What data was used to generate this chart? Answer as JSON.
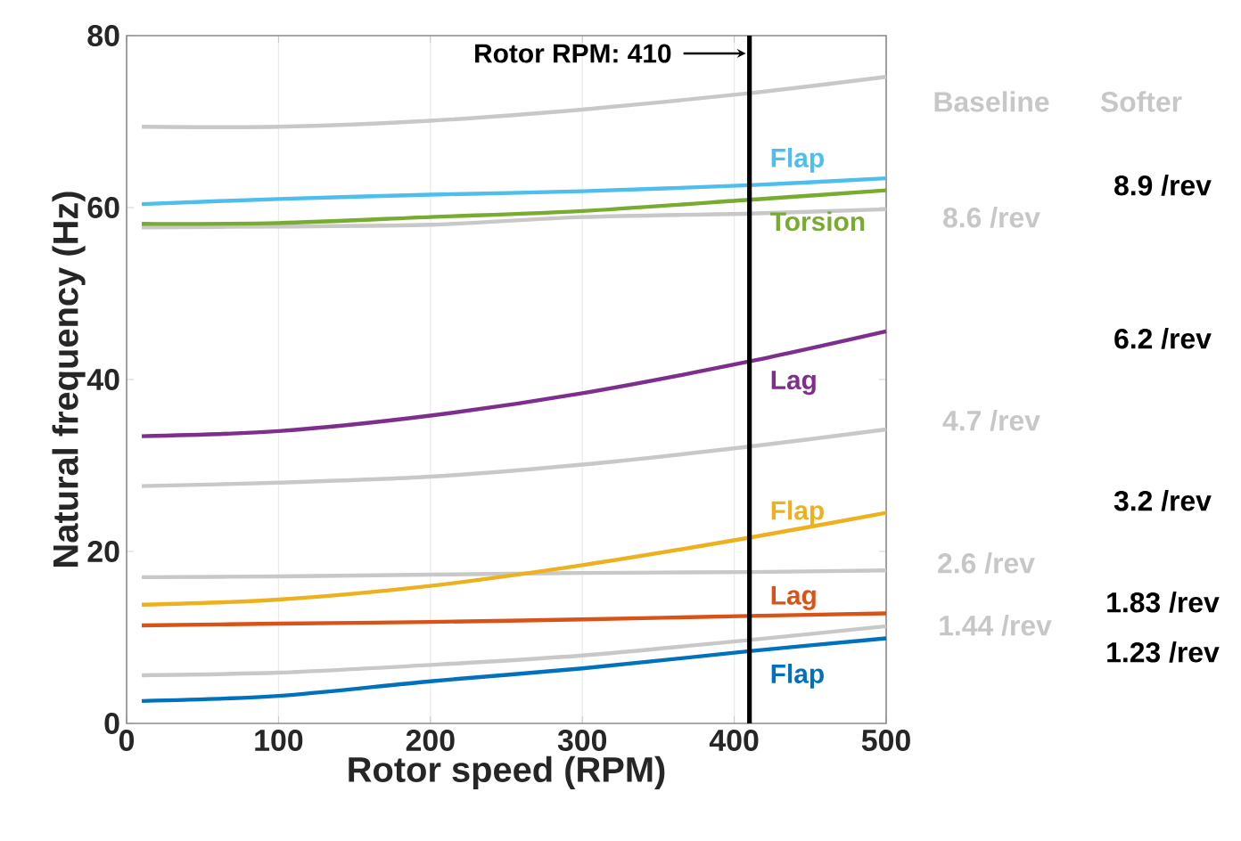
{
  "chart_data": {
    "type": "line",
    "xlabel": "Rotor speed (RPM)",
    "ylabel": "Natural  frequency (Hz)",
    "xlim": [
      0,
      500
    ],
    "ylim": [
      0,
      80
    ],
    "xticks": [
      0,
      100,
      200,
      300,
      400,
      500
    ],
    "yticks": [
      0,
      20,
      40,
      60,
      80
    ],
    "grid": "x",
    "marker": "none",
    "line_style": "solid",
    "x": [
      10,
      100,
      200,
      300,
      410,
      500
    ],
    "series": [
      {
        "color": "#c8c8c8",
        "values": [
          69.4,
          69.4,
          70.1,
          71.4,
          73.3,
          75.2
        ]
      },
      {
        "color": "#c8c8c8",
        "values": [
          57.7,
          57.8,
          58.0,
          58.9,
          59.3,
          59.8
        ]
      },
      {
        "color": "#c8c8c8",
        "values": [
          27.6,
          28.0,
          28.7,
          30.1,
          32.2,
          34.2
        ]
      },
      {
        "color": "#c8c8c8",
        "values": [
          17.0,
          17.1,
          17.3,
          17.5,
          17.6,
          17.8
        ]
      },
      {
        "color": "#c8c8c8",
        "values": [
          5.6,
          5.9,
          6.8,
          7.9,
          9.7,
          11.3
        ]
      },
      {
        "name": "Flap",
        "color": "#4dbeee",
        "values": [
          60.4,
          61.0,
          61.5,
          61.9,
          62.6,
          63.4
        ]
      },
      {
        "name": "Torsion",
        "color": "#77ac30",
        "values": [
          58.1,
          58.2,
          58.9,
          59.6,
          60.9,
          62.0
        ]
      },
      {
        "name": "Lag",
        "color": "#7e2f8e",
        "values": [
          33.4,
          34.0,
          35.8,
          38.4,
          42.1,
          45.6
        ]
      },
      {
        "name": "Flap",
        "color": "#edb120",
        "values": [
          13.8,
          14.4,
          16.0,
          18.4,
          21.6,
          24.5
        ]
      },
      {
        "name": "Lag",
        "color": "#d95319",
        "values": [
          11.4,
          11.6,
          11.8,
          12.1,
          12.5,
          12.8
        ]
      },
      {
        "name": "Flap",
        "color": "#0072bd",
        "values": [
          2.6,
          3.2,
          4.9,
          6.4,
          8.4,
          9.9
        ]
      }
    ],
    "ref_lines": [
      {
        "axis": "x",
        "value": 410,
        "label": "Rotor RPM: 410",
        "color": "#000000",
        "line_style": "solid"
      }
    ],
    "annotations": [
      "Baseline",
      "Softer",
      "8.6 /rev",
      "8.9 /rev",
      "6.2 /rev",
      "4.7 /rev",
      "3.2 /rev",
      "2.6 /rev",
      "1.83 /rev",
      "1.44 /rev",
      "1.23 /rev"
    ]
  }
}
